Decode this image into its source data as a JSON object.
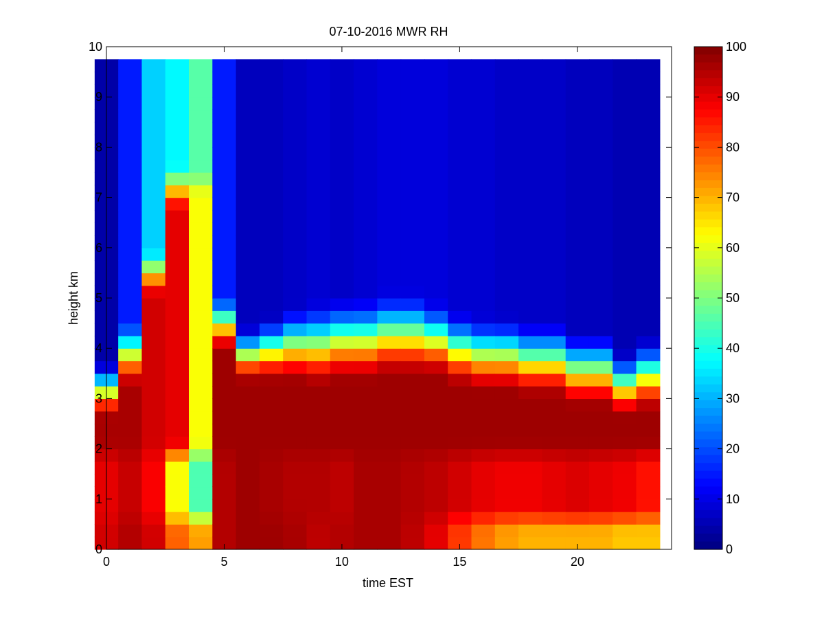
{
  "chart_data": {
    "type": "heatmap",
    "title": "07-10-2016 MWR RH",
    "xlabel": "time EST",
    "ylabel": "height km",
    "xlim": [
      0,
      24
    ],
    "ylim": [
      0,
      10
    ],
    "xticks": [
      "0",
      "5",
      "10",
      "15",
      "20"
    ],
    "yticks": [
      "0",
      "1",
      "2",
      "3",
      "4",
      "5",
      "6",
      "7",
      "8",
      "9",
      "10"
    ],
    "colorbar": {
      "colormap": "jet",
      "clim": [
        0,
        100
      ],
      "ticks": [
        "0",
        "10",
        "20",
        "30",
        "40",
        "50",
        "60",
        "70",
        "80",
        "90",
        "100"
      ]
    },
    "x_centers": [
      0,
      1,
      2,
      3,
      4,
      5,
      6,
      7,
      8,
      9,
      10,
      11,
      12,
      13,
      14,
      15,
      16,
      17,
      18,
      19,
      20,
      21,
      22,
      23
    ],
    "y_top": 9.75,
    "profile_columns": [
      "surface_rh",
      "low_rh",
      "pbl_rh",
      "cloud_base_km",
      "transition_width_km",
      "upper_rh"
    ],
    "profiles": [
      [
        92,
        90,
        96,
        3.2,
        0.6,
        4
      ],
      [
        95,
        93,
        96,
        3.9,
        0.7,
        15
      ],
      [
        92,
        88,
        92,
        5.5,
        0.5,
        33
      ],
      [
        78,
        62,
        90,
        7.2,
        0.5,
        37
      ],
      [
        72,
        45,
        62,
        7.3,
        0.3,
        46
      ],
      [
        95,
        95,
        97,
        4.5,
        0.6,
        15
      ],
      [
        97,
        97,
        97,
        3.9,
        0.6,
        6
      ],
      [
        97,
        96,
        97,
        4.0,
        0.7,
        6
      ],
      [
        96,
        95,
        97,
        4.1,
        0.8,
        7
      ],
      [
        94,
        95,
        97,
        4.1,
        0.9,
        8
      ],
      [
        95,
        94,
        97,
        4.2,
        0.9,
        7
      ],
      [
        96,
        96,
        97,
        4.2,
        0.9,
        8
      ],
      [
        96,
        96,
        97,
        4.3,
        0.9,
        9
      ],
      [
        94,
        95,
        97,
        4.3,
        0.9,
        9
      ],
      [
        90,
        94,
        97,
        4.2,
        0.8,
        9
      ],
      [
        82,
        92,
        97,
        4.0,
        0.8,
        8
      ],
      [
        76,
        90,
        97,
        3.9,
        0.8,
        8
      ],
      [
        72,
        89,
        97,
        3.9,
        0.8,
        7
      ],
      [
        70,
        89,
        97,
        3.8,
        0.8,
        7
      ],
      [
        70,
        90,
        97,
        3.8,
        0.8,
        7
      ],
      [
        70,
        91,
        97,
        3.6,
        0.8,
        6
      ],
      [
        70,
        90,
        97,
        3.6,
        0.8,
        6
      ],
      [
        68,
        89,
        97,
        3.3,
        0.7,
        5
      ],
      [
        68,
        86,
        97,
        3.5,
        0.8,
        5
      ]
    ]
  }
}
